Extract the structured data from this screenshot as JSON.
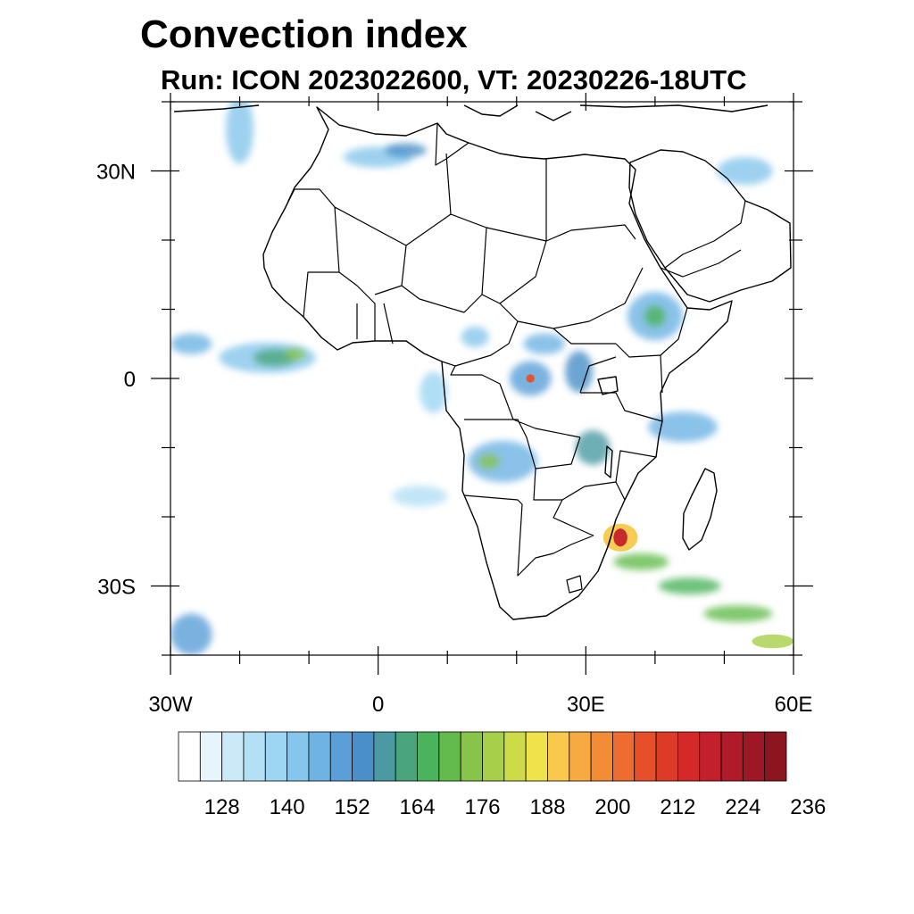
{
  "title": "Convection index",
  "subtitle": "Run: ICON 2023022600,  VT: 20230226-18UTC",
  "map": {
    "lon_range": [
      -30,
      60
    ],
    "lat_range": [
      -40,
      40
    ],
    "lon_ticks": [
      {
        "value": -30,
        "label": "30W"
      },
      {
        "value": 0,
        "label": "0"
      },
      {
        "value": 30,
        "label": "30E"
      },
      {
        "value": 60,
        "label": "60E"
      }
    ],
    "lat_ticks": [
      {
        "value": 30,
        "label": "30N"
      },
      {
        "value": 0,
        "label": "0"
      },
      {
        "value": -30,
        "label": "30S"
      }
    ],
    "features": {
      "coastline": "black",
      "borders": "black"
    }
  },
  "colorbar": {
    "colors": [
      "#ffffff",
      "#e6f4fb",
      "#cbe9f7",
      "#b3e0f5",
      "#9dd6f3",
      "#86c6ec",
      "#6eb3e4",
      "#5a9fd8",
      "#4a8fc8",
      "#4b9aa3",
      "#4aa57d",
      "#4bb35b",
      "#62bb4b",
      "#86c54a",
      "#a8cf4a",
      "#cddb49",
      "#f0e24b",
      "#f8c94a",
      "#f7aa41",
      "#f38c37",
      "#ee6c2f",
      "#e5502a",
      "#de3a28",
      "#d42829",
      "#c4202b",
      "#b11a28",
      "#9e1724",
      "#8b1620"
    ],
    "labels": [
      "128",
      "140",
      "152",
      "164",
      "176",
      "188",
      "200",
      "212",
      "224",
      "236"
    ],
    "label_box_index": [
      2,
      5,
      8,
      11,
      14,
      17,
      20,
      23,
      26,
      29
    ]
  },
  "convection_cells": [
    {
      "lon": -27,
      "lat": 5,
      "rx": 3,
      "ry": 1.5,
      "level": 6
    },
    {
      "lon": -16,
      "lat": 3,
      "rx": 7,
      "ry": 2.2,
      "level": 5
    },
    {
      "lon": -15,
      "lat": 3,
      "rx": 3,
      "ry": 1.2,
      "level": 10
    },
    {
      "lon": -12,
      "lat": 3.5,
      "rx": 1.5,
      "ry": 0.8,
      "level": 13
    },
    {
      "lon": 22,
      "lat": 0,
      "rx": 3,
      "ry": 2.5,
      "level": 7
    },
    {
      "lon": 22,
      "lat": 0,
      "rx": 0.6,
      "ry": 0.6,
      "level": 21
    },
    {
      "lon": 24,
      "lat": 5,
      "rx": 3,
      "ry": 1.5,
      "level": 6
    },
    {
      "lon": 40,
      "lat": 9,
      "rx": 4,
      "ry": 3.5,
      "level": 6
    },
    {
      "lon": 40,
      "lat": 9,
      "rx": 1.5,
      "ry": 1.5,
      "level": 11
    },
    {
      "lon": 44,
      "lat": -7,
      "rx": 5,
      "ry": 2.2,
      "level": 6
    },
    {
      "lon": 18,
      "lat": -12,
      "rx": 5,
      "ry": 3,
      "level": 6
    },
    {
      "lon": 16,
      "lat": -12,
      "rx": 1.5,
      "ry": 1,
      "level": 13
    },
    {
      "lon": 31,
      "lat": -10,
      "rx": 2.5,
      "ry": 2.5,
      "level": 9
    },
    {
      "lon": 29,
      "lat": 1,
      "rx": 2,
      "ry": 3,
      "level": 8
    },
    {
      "lon": 35,
      "lat": -23,
      "rx": 2.5,
      "ry": 2,
      "level": 17
    },
    {
      "lon": 35,
      "lat": -23,
      "rx": 1,
      "ry": 1.3,
      "level": 24
    },
    {
      "lon": 38,
      "lat": -26.5,
      "rx": 4,
      "ry": 1.2,
      "level": 12
    },
    {
      "lon": 45,
      "lat": -30,
      "rx": 4.5,
      "ry": 1.2,
      "level": 11
    },
    {
      "lon": 52,
      "lat": -34,
      "rx": 5,
      "ry": 1.2,
      "level": 12
    },
    {
      "lon": 57,
      "lat": -38,
      "rx": 3,
      "ry": 1,
      "level": 14
    },
    {
      "lon": 53,
      "lat": 30,
      "rx": 4,
      "ry": 2,
      "level": 5
    },
    {
      "lon": 0,
      "lat": 32,
      "rx": 5,
      "ry": 1.5,
      "level": 5
    },
    {
      "lon": 4,
      "lat": 33,
      "rx": 3,
      "ry": 1,
      "level": 8
    },
    {
      "lon": -27,
      "lat": -37,
      "rx": 3,
      "ry": 3,
      "level": 7
    },
    {
      "lon": -20,
      "lat": 36,
      "rx": 2,
      "ry": 5,
      "level": 5
    },
    {
      "lon": 14,
      "lat": 6,
      "rx": 2,
      "ry": 1.5,
      "level": 5
    },
    {
      "lon": 8,
      "lat": -2,
      "rx": 2,
      "ry": 3,
      "level": 4
    },
    {
      "lon": 6,
      "lat": -17,
      "rx": 4,
      "ry": 1.5,
      "level": 3
    }
  ]
}
